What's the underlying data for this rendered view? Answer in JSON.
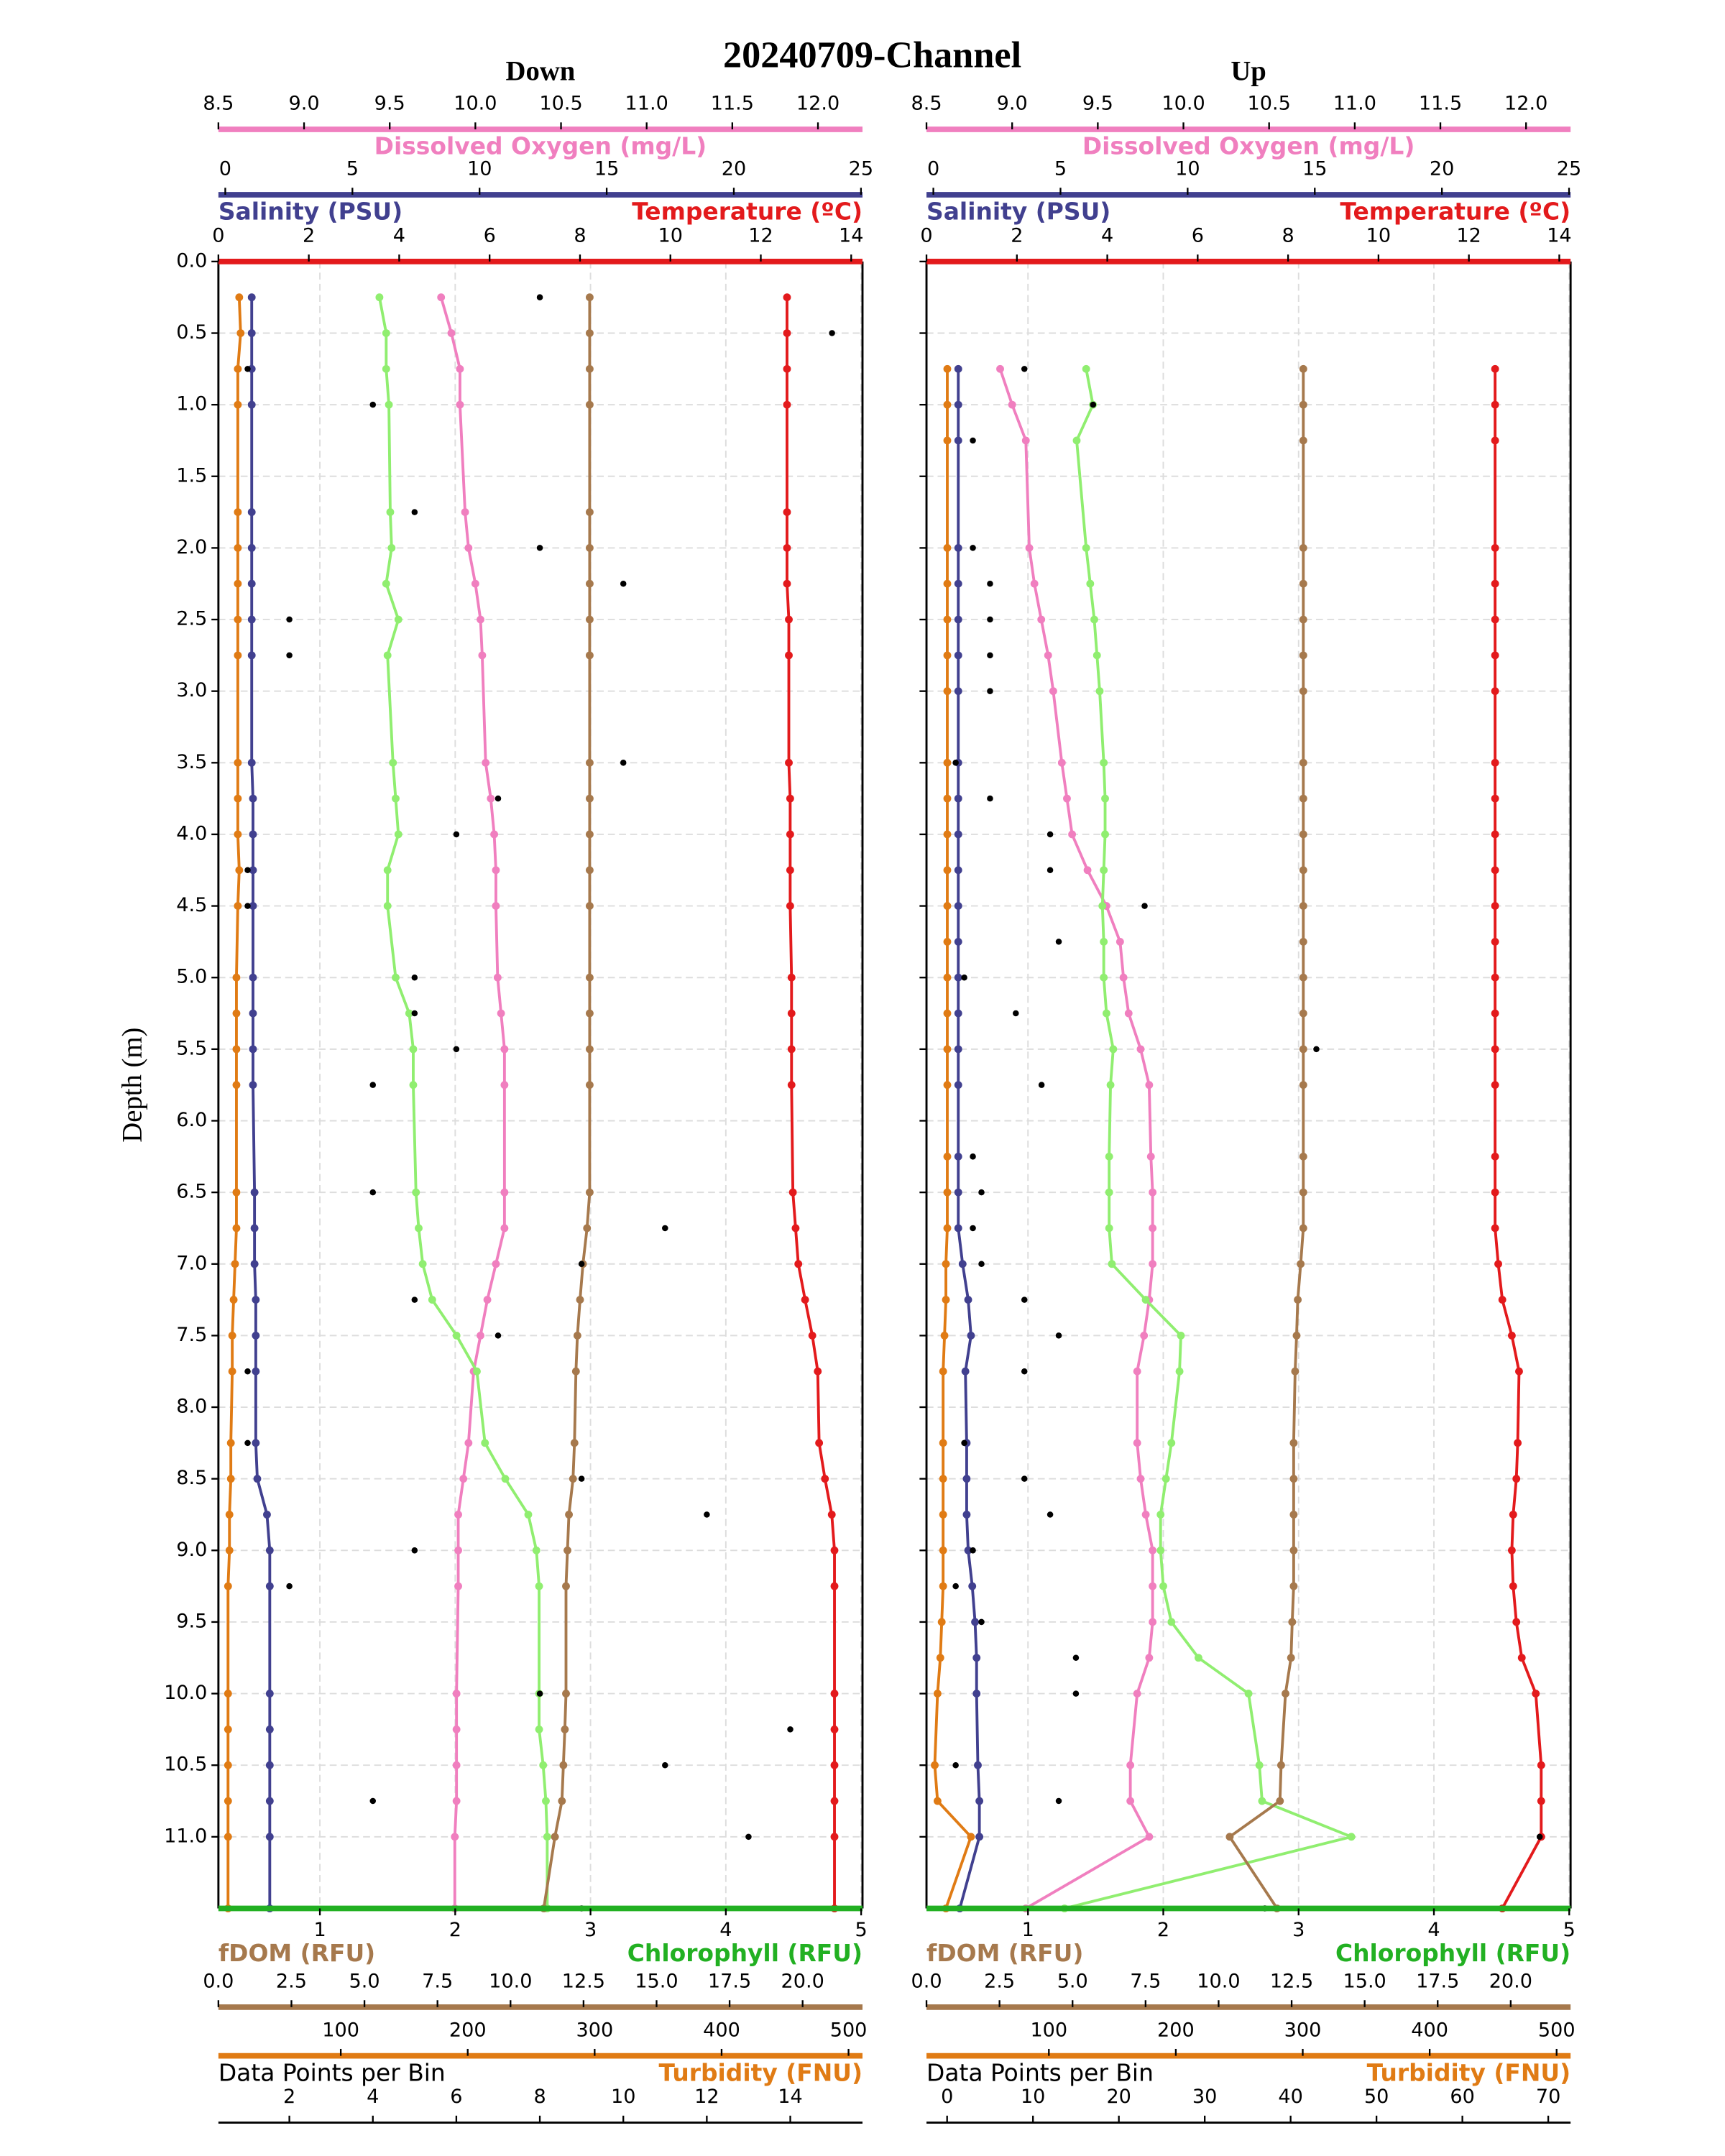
{
  "chart_data": {
    "type": "line",
    "title": "20240709-Channel",
    "y_label": "Depth (m)",
    "ylim": [
      0,
      11.5
    ],
    "yticks": [
      {
        "value": 0,
        "label": "0.0"
      },
      0.5,
      {
        "value": 1,
        "label": "1.0"
      },
      1.5,
      {
        "value": 2,
        "label": "2.0"
      },
      2.5,
      {
        "value": 3,
        "label": "3.0"
      },
      3.5,
      {
        "value": 4,
        "label": "4.0"
      },
      4.5,
      {
        "value": 5,
        "label": "5.0"
      },
      5.5,
      {
        "value": 6,
        "label": "6.0"
      },
      6.5,
      {
        "value": 7,
        "label": "7.0"
      },
      7.5,
      {
        "value": 8,
        "label": "8.0"
      },
      8.5,
      {
        "value": 9,
        "label": "9.0"
      },
      9.5,
      {
        "value": 10,
        "label": "10.0"
      },
      10.5,
      {
        "value": 11,
        "label": "11.0"
      }
    ],
    "grid": true,
    "panels": [
      {
        "title": "Down",
        "depth": [
          0.25,
          0.5,
          0.75,
          1,
          1.75,
          2,
          2.25,
          2.5,
          2.75,
          3.5,
          3.75,
          4,
          4.25,
          4.5,
          5,
          5.25,
          5.5,
          5.75,
          6.5,
          6.75,
          7,
          7.25,
          7.5,
          7.75,
          8.25,
          8.5,
          8.75,
          9,
          9.25,
          10,
          10.25,
          10.5,
          10.75,
          11,
          11.5
        ],
        "axes": [
          {
            "label": "Dissolved Oxygen (mg/L)",
            "color": "#f07fbf",
            "kind": "line",
            "xlim": [
              8.5,
              12.26
            ],
            "xticks": [
              8.5,
              {
                "value": 9,
                "label": "9.0"
              },
              9.5,
              {
                "value": 10,
                "label": "10.0"
              },
              10.5,
              {
                "value": 11,
                "label": "11.0"
              },
              11.5,
              {
                "value": 12,
                "label": "12.0"
              }
            ],
            "values": [
              9.8,
              9.86,
              9.91,
              9.91,
              9.94,
              9.96,
              10.0,
              10.03,
              10.04,
              10.06,
              10.09,
              10.11,
              10.12,
              10.12,
              10.13,
              10.15,
              10.17,
              10.17,
              10.17,
              10.17,
              10.12,
              10.07,
              10.03,
              9.99,
              9.96,
              9.93,
              9.9,
              9.9,
              9.9,
              9.89,
              9.89,
              9.89,
              9.89,
              9.88,
              9.88
            ]
          },
          {
            "label": "Salinity (PSU)",
            "color": "#41408f",
            "kind": "line",
            "xlim": [
              -0.27,
              25.06
            ],
            "xticks": [
              0,
              5,
              10,
              15,
              20,
              25
            ],
            "values": [
              1.04,
              1.04,
              1.04,
              1.04,
              1.04,
              1.04,
              1.04,
              1.04,
              1.04,
              1.04,
              1.09,
              1.09,
              1.09,
              1.09,
              1.09,
              1.09,
              1.09,
              1.09,
              1.15,
              1.15,
              1.15,
              1.2,
              1.2,
              1.2,
              1.2,
              1.26,
              1.64,
              1.75,
              1.75,
              1.75,
              1.75,
              1.75,
              1.75,
              1.75,
              1.75
            ]
          },
          {
            "label": "Temperature (ºC)",
            "color": "#e31a1c",
            "kind": "line",
            "xlim": [
              0,
              14.25
            ],
            "xticks": [
              0,
              2,
              4,
              6,
              8,
              10,
              12,
              14
            ],
            "values": [
              12.58,
              12.58,
              12.58,
              12.58,
              12.58,
              12.58,
              12.58,
              12.62,
              12.62,
              12.62,
              12.65,
              12.65,
              12.65,
              12.65,
              12.68,
              12.68,
              12.68,
              12.68,
              12.71,
              12.77,
              12.83,
              12.98,
              13.14,
              13.26,
              13.29,
              13.42,
              13.57,
              13.63,
              13.63,
              13.63,
              13.63,
              13.63,
              13.63,
              13.63,
              13.63
            ]
          },
          {
            "label": "Chlorophyll (RFU)",
            "color": "#22b022",
            "line_color": "#90ee70",
            "kind": "line",
            "grid": true,
            "xlim": [
              0.25,
              5.01
            ],
            "xticks": [
              1,
              2,
              3,
              4,
              5
            ],
            "values": [
              1.44,
              1.49,
              1.49,
              1.51,
              1.52,
              1.53,
              1.49,
              1.58,
              1.5,
              1.54,
              1.56,
              1.58,
              1.5,
              1.5,
              1.56,
              1.66,
              1.69,
              1.69,
              1.71,
              1.73,
              1.76,
              1.83,
              2.01,
              2.16,
              2.22,
              2.37,
              2.54,
              2.6,
              2.62,
              2.62,
              2.62,
              2.65,
              2.67,
              2.68,
              2.68
            ]
          },
          {
            "label": "fDOM (RFU)",
            "color": "#a6794d",
            "kind": "line",
            "xlim": [
              0,
              22.05
            ],
            "xticks": [
              {
                "value": 0,
                "label": "0.0"
              },
              2.5,
              {
                "value": 5,
                "label": "5.0"
              },
              7.5,
              {
                "value": 10,
                "label": "10.0"
              },
              12.5,
              {
                "value": 15,
                "label": "15.0"
              },
              17.5,
              {
                "value": 20,
                "label": "20.0"
              }
            ],
            "values": [
              12.71,
              12.71,
              12.71,
              12.71,
              12.71,
              12.71,
              12.71,
              12.71,
              12.71,
              12.71,
              12.71,
              12.71,
              12.71,
              12.71,
              12.71,
              12.71,
              12.71,
              12.71,
              12.71,
              12.62,
              12.48,
              12.38,
              12.29,
              12.24,
              12.19,
              12.14,
              12.0,
              11.95,
              11.9,
              11.9,
              11.86,
              11.81,
              11.76,
              11.52,
              11.14
            ]
          },
          {
            "label": "Turbidity (FNU)",
            "color": "#e07b14",
            "kind": "line",
            "xlim": [
              3.6,
              511
            ],
            "xticks": [
              100,
              200,
              300,
              400,
              500
            ],
            "values": [
              20.0,
              21.1,
              18.9,
              18.9,
              18.9,
              18.9,
              18.9,
              18.9,
              18.9,
              18.9,
              18.9,
              18.9,
              20.0,
              18.9,
              17.8,
              17.8,
              17.8,
              17.8,
              17.8,
              17.8,
              16.7,
              15.6,
              14.5,
              14.5,
              13.4,
              13.4,
              12.3,
              12.3,
              11.2,
              11.2,
              11.2,
              11.2,
              11.2,
              11.2,
              11.2
            ]
          },
          {
            "label": "Data Points per Bin",
            "color": "#000000",
            "kind": "scatter",
            "xlim": [
              0.3,
              15.73
            ],
            "xticks": [
              2,
              4,
              6,
              8,
              10,
              12,
              14
            ],
            "values": [
              8,
              15,
              1,
              4,
              5,
              8,
              10,
              2,
              2,
              10,
              7,
              6,
              1,
              1,
              5,
              5,
              6,
              4,
              4,
              11,
              9,
              5,
              7,
              1,
              1,
              9,
              12,
              5,
              2,
              8,
              14,
              11,
              4,
              13,
              9
            ]
          }
        ]
      },
      {
        "title": "Up",
        "depth": [
          0.75,
          1,
          1.25,
          2,
          2.25,
          2.5,
          2.75,
          3,
          3.5,
          3.75,
          4,
          4.25,
          4.5,
          4.75,
          5,
          5.25,
          5.5,
          5.75,
          6.25,
          6.5,
          6.75,
          7,
          7.25,
          7.5,
          7.75,
          8.25,
          8.5,
          8.75,
          9,
          9.25,
          9.5,
          9.75,
          10,
          10.5,
          10.75,
          11,
          11.5
        ],
        "axes": [
          {
            "label": "Dissolved Oxygen (mg/L)",
            "color": "#f07fbf",
            "kind": "line",
            "xlim": [
              8.5,
              12.26
            ],
            "xticks": [
              8.5,
              {
                "value": 9,
                "label": "9.0"
              },
              9.5,
              {
                "value": 10,
                "label": "10.0"
              },
              10.5,
              {
                "value": 11,
                "label": "11.0"
              },
              11.5,
              {
                "value": 12,
                "label": "12.0"
              }
            ],
            "values": [
              8.93,
              9.0,
              9.08,
              9.1,
              9.13,
              9.17,
              9.21,
              9.24,
              9.29,
              9.32,
              9.35,
              9.44,
              9.55,
              9.63,
              9.65,
              9.68,
              9.75,
              9.8,
              9.81,
              9.82,
              9.82,
              9.82,
              9.8,
              9.77,
              9.73,
              9.73,
              9.75,
              9.78,
              9.82,
              9.82,
              9.82,
              9.8,
              9.73,
              9.69,
              9.69,
              9.8,
              9.08
            ]
          },
          {
            "label": "Salinity (PSU)",
            "color": "#41408f",
            "kind": "line",
            "xlim": [
              -0.27,
              25.06
            ],
            "xticks": [
              0,
              5,
              10,
              15,
              20,
              25
            ],
            "values": [
              0.98,
              0.98,
              0.98,
              0.98,
              0.98,
              0.98,
              0.98,
              0.98,
              0.98,
              0.98,
              0.98,
              0.98,
              0.98,
              0.98,
              0.98,
              0.98,
              0.98,
              0.98,
              0.98,
              0.98,
              0.98,
              1.15,
              1.37,
              1.48,
              1.26,
              1.31,
              1.31,
              1.31,
              1.37,
              1.53,
              1.64,
              1.7,
              1.7,
              1.75,
              1.81,
              1.81,
              1.04
            ]
          },
          {
            "label": "Temperature (ºC)",
            "color": "#e31a1c",
            "kind": "line",
            "xlim": [
              0,
              14.25
            ],
            "xticks": [
              0,
              2,
              4,
              6,
              8,
              10,
              12,
              14
            ],
            "values": [
              12.58,
              12.58,
              12.58,
              12.58,
              12.58,
              12.58,
              12.58,
              12.58,
              12.58,
              12.58,
              12.58,
              12.58,
              12.58,
              12.58,
              12.58,
              12.58,
              12.58,
              12.58,
              12.58,
              12.58,
              12.58,
              12.65,
              12.74,
              12.95,
              13.11,
              13.08,
              13.05,
              12.98,
              12.95,
              12.98,
              13.05,
              13.17,
              13.48,
              13.6,
              13.6,
              13.6,
              12.74
            ]
          },
          {
            "label": "Chlorophyll (RFU)",
            "color": "#22b022",
            "line_color": "#90ee70",
            "kind": "line",
            "grid": true,
            "xlim": [
              0.25,
              5.01
            ],
            "xticks": [
              1,
              2,
              3,
              4,
              5
            ],
            "values": [
              1.43,
              1.48,
              1.36,
              1.43,
              1.46,
              1.49,
              1.51,
              1.53,
              1.56,
              1.57,
              1.57,
              1.56,
              1.55,
              1.56,
              1.56,
              1.58,
              1.63,
              1.61,
              1.6,
              1.6,
              1.6,
              1.62,
              1.87,
              2.13,
              2.12,
              2.06,
              2.02,
              1.98,
              1.98,
              2.0,
              2.06,
              2.26,
              2.63,
              2.71,
              2.73,
              3.39,
              1.27
            ]
          },
          {
            "label": "fDOM (RFU)",
            "color": "#a6794d",
            "kind": "line",
            "xlim": [
              0,
              22.05
            ],
            "xticks": [
              {
                "value": 0,
                "label": "0.0"
              },
              2.5,
              {
                "value": 5,
                "label": "5.0"
              },
              7.5,
              {
                "value": 10,
                "label": "10.0"
              },
              12.5,
              {
                "value": 15,
                "label": "15.0"
              },
              17.5,
              {
                "value": 20,
                "label": "20.0"
              }
            ],
            "values": [
              12.9,
              12.9,
              12.9,
              12.9,
              12.9,
              12.9,
              12.9,
              12.9,
              12.9,
              12.9,
              12.9,
              12.9,
              12.9,
              12.9,
              12.9,
              12.9,
              12.9,
              12.9,
              12.9,
              12.9,
              12.9,
              12.81,
              12.71,
              12.67,
              12.62,
              12.57,
              12.57,
              12.57,
              12.57,
              12.57,
              12.52,
              12.48,
              12.29,
              12.14,
              12.1,
              10.38,
              12.0
            ]
          },
          {
            "label": "Turbidity (FNU)",
            "color": "#e07b14",
            "kind": "line",
            "xlim": [
              3.6,
              511
            ],
            "xticks": [
              100,
              200,
              300,
              400,
              500
            ],
            "values": [
              20.0,
              20.0,
              20.0,
              20.0,
              20.0,
              20.0,
              20.0,
              20.0,
              20.0,
              20.0,
              20.0,
              20.0,
              20.0,
              20.0,
              20.0,
              20.0,
              20.0,
              20.0,
              20.0,
              20.0,
              20.0,
              18.9,
              18.9,
              17.8,
              16.7,
              16.7,
              16.7,
              16.7,
              16.7,
              16.7,
              15.6,
              14.5,
              12.3,
              10.1,
              12.3,
              38.6,
              18.9
            ]
          },
          {
            "label": "Data Points per Bin",
            "color": "#000000",
            "kind": "scatter",
            "xlim": [
              -2.4,
              72.6
            ],
            "xticks": [
              0,
              10,
              20,
              30,
              40,
              50,
              60,
              70
            ],
            "values": [
              9,
              17,
              3,
              3,
              5,
              5,
              5,
              5,
              1,
              5,
              12,
              12,
              23,
              13,
              2,
              8,
              43,
              11,
              3,
              4,
              3,
              4,
              9,
              13,
              9,
              2,
              9,
              12,
              3,
              1,
              4,
              15,
              15,
              1,
              13,
              69,
              37
            ]
          }
        ]
      }
    ]
  }
}
